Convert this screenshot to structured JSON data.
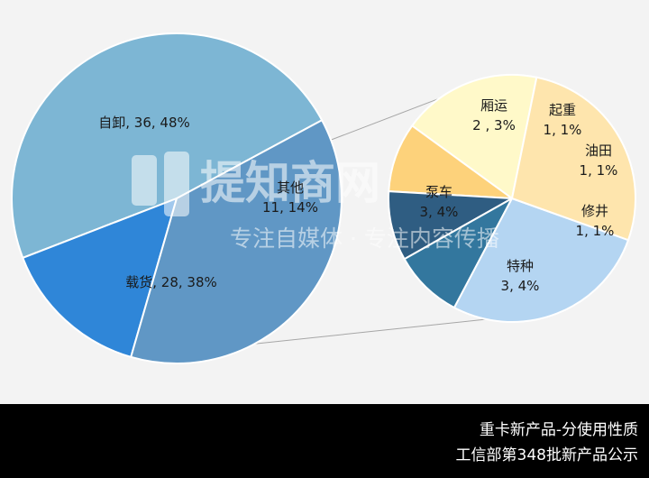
{
  "chart_data": {
    "type": "pie",
    "subtype": "pie-of-pie",
    "main_pie": {
      "slices": [
        {
          "label": "自卸, 36, 48%",
          "category": "自卸",
          "value": 36,
          "percent": 48,
          "color": "#7db6d4"
        },
        {
          "label": "其他\n11, 14%",
          "category": "其他",
          "value": 11,
          "percent": 14,
          "color": "#2f86d8"
        },
        {
          "label": "载货, 28, 38%",
          "category": "载货",
          "value": 28,
          "percent": 38,
          "color": "#6097c5"
        }
      ]
    },
    "secondary_pie": {
      "slices": [
        {
          "label": "厢运\n2 , 3%",
          "category": "厢运",
          "value": 2,
          "percent": 3,
          "color": "#fff9c9"
        },
        {
          "label": "起重\n1, 1%",
          "category": "起重",
          "value": 1,
          "percent": 1,
          "color": "#fdd27b"
        },
        {
          "label": "油田\n1, 1%",
          "category": "油田",
          "value": 1,
          "percent": 1,
          "color": "#2f5d82",
          "text_color": "#ffffff"
        },
        {
          "label": "修井\n1, 1%",
          "category": "修井",
          "value": 1,
          "percent": 1,
          "color": "#33779e"
        },
        {
          "label": "特种\n3, 4%",
          "category": "特种",
          "value": 3,
          "percent": 4,
          "color": "#b4d5f2"
        },
        {
          "label": "泵车\n3, 4%",
          "category": "泵车",
          "value": 3,
          "percent": 4,
          "color": "#fee5ad"
        }
      ]
    }
  },
  "watermark": {
    "title": "提知商网",
    "subtitle": "专注自媒体 ·  专注内容传播"
  },
  "footer": {
    "line1": "重卡新产品-分使用性质",
    "line2": "工信部第348批新产品公示"
  }
}
